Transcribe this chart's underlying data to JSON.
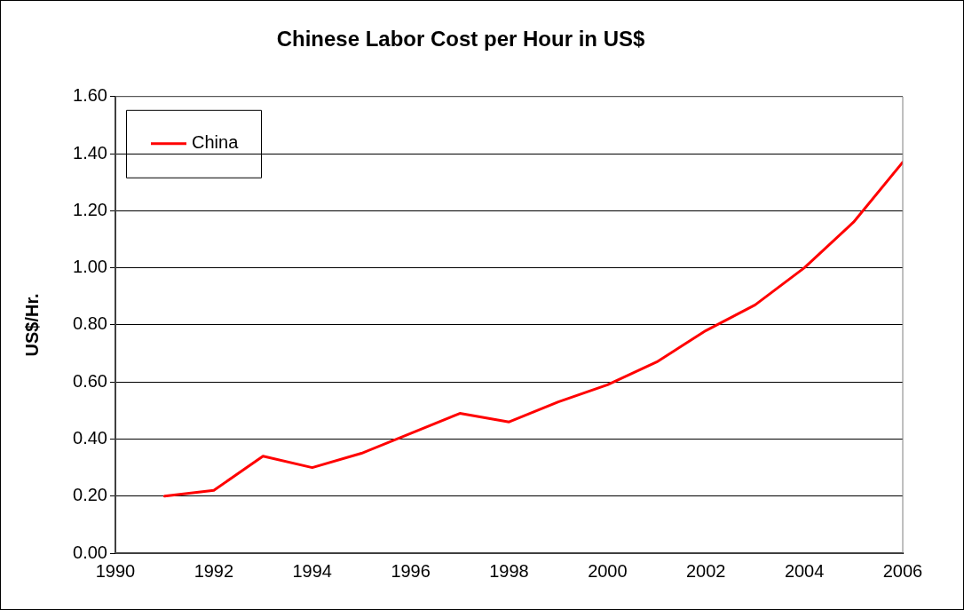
{
  "chart_data": {
    "type": "line",
    "title": "Chinese Labor Cost per Hour in US$",
    "ylabel": "US$/Hr.",
    "x": [
      1991,
      1992,
      1993,
      1994,
      1995,
      1996,
      1997,
      1998,
      1999,
      2000,
      2001,
      2002,
      2003,
      2004,
      2005,
      2006
    ],
    "series": [
      {
        "name": "China",
        "color": "#ff0000",
        "values": [
          0.2,
          0.22,
          0.34,
          0.3,
          0.35,
          0.42,
          0.49,
          0.46,
          0.53,
          0.59,
          0.67,
          0.78,
          0.87,
          1.0,
          1.16,
          1.37
        ]
      }
    ],
    "xlim": [
      1990,
      2006
    ],
    "xticks": [
      1990,
      1992,
      1994,
      1996,
      1998,
      2000,
      2002,
      2004,
      2006
    ],
    "ylim": [
      0,
      1.6
    ],
    "yticks": [
      {
        "value": 0,
        "label": "0.00"
      },
      {
        "value": 0.2,
        "label": "0.20"
      },
      {
        "value": 0.4,
        "label": "0.40"
      },
      {
        "value": 0.6,
        "label": "0.60"
      },
      {
        "value": 0.8,
        "label": "0.80"
      },
      {
        "value": 1.0,
        "label": "1.00"
      },
      {
        "value": 1.2,
        "label": "1.20"
      },
      {
        "value": 1.4,
        "label": "1.40"
      },
      {
        "value": 1.6,
        "label": "1.60"
      }
    ],
    "grid": "y",
    "legend": "top left",
    "marker": "none",
    "line_style": "solid"
  }
}
